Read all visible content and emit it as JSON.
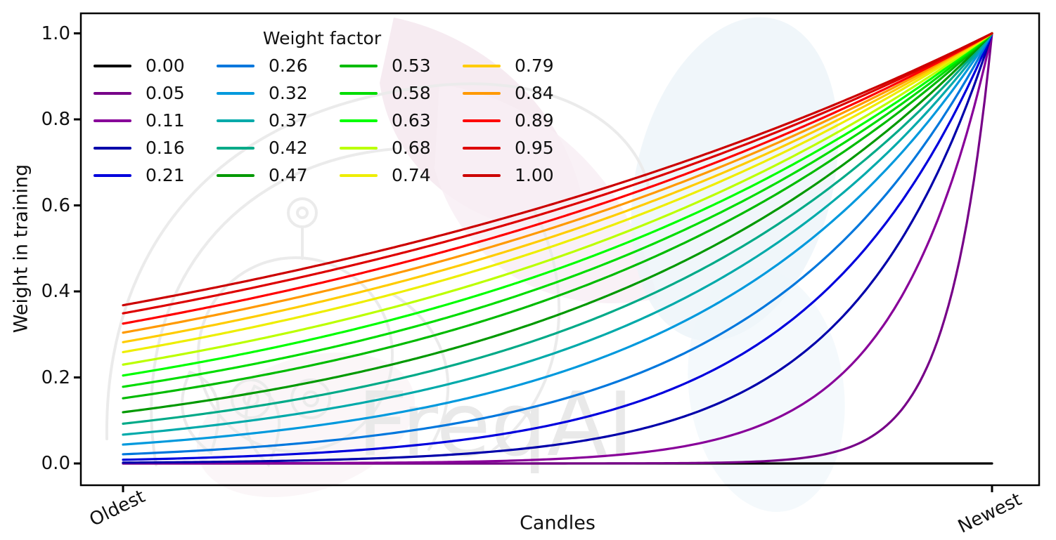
{
  "watermark": {
    "text": "FreqAI"
  },
  "chart_data": {
    "type": "line",
    "title": "",
    "xlabel": "Candles",
    "ylabel": "Weight in training",
    "x_tick_labels": [
      "Oldest",
      "Newest"
    ],
    "y_ticks": [
      0.0,
      0.2,
      0.4,
      0.6,
      0.8,
      1.0
    ],
    "y_tick_labels": [
      "0.0",
      "0.2",
      "0.4",
      "0.6",
      "0.8",
      "1.0"
    ],
    "ylim": [
      -0.05,
      1.05
    ],
    "x_range_normalized": [
      0,
      1
    ],
    "grid": false,
    "legend": {
      "title": "Weight factor",
      "columns": 4,
      "rows": 5,
      "position": "upper left"
    },
    "curve_formula": "weight(x) = exp(-(1 - x) / factor), x from 0 (Oldest) to 1 (Newest); factor 0.00 plots as a constant 0 line",
    "series": [
      {
        "label": "0.00",
        "factor": 0.0,
        "color": "#000000",
        "weight_at_oldest": 0.0,
        "weight_at_newest": 0.0
      },
      {
        "label": "0.05",
        "factor": 0.05,
        "color": "#770088",
        "weight_at_oldest": 0.0,
        "weight_at_newest": 1.0
      },
      {
        "label": "0.11",
        "factor": 0.11,
        "color": "#880099",
        "weight_at_oldest": 0.0001,
        "weight_at_newest": 1.0
      },
      {
        "label": "0.16",
        "factor": 0.16,
        "color": "#0000AA",
        "weight_at_oldest": 0.002,
        "weight_at_newest": 1.0
      },
      {
        "label": "0.21",
        "factor": 0.21,
        "color": "#0000DD",
        "weight_at_oldest": 0.009,
        "weight_at_newest": 1.0
      },
      {
        "label": "0.26",
        "factor": 0.26,
        "color": "#0077DD",
        "weight_at_oldest": 0.021,
        "weight_at_newest": 1.0
      },
      {
        "label": "0.32",
        "factor": 0.32,
        "color": "#0099DD",
        "weight_at_oldest": 0.044,
        "weight_at_newest": 1.0
      },
      {
        "label": "0.37",
        "factor": 0.37,
        "color": "#00AAAA",
        "weight_at_oldest": 0.067,
        "weight_at_newest": 1.0
      },
      {
        "label": "0.42",
        "factor": 0.42,
        "color": "#00AA88",
        "weight_at_oldest": 0.093,
        "weight_at_newest": 1.0
      },
      {
        "label": "0.47",
        "factor": 0.47,
        "color": "#009900",
        "weight_at_oldest": 0.119,
        "weight_at_newest": 1.0
      },
      {
        "label": "0.53",
        "factor": 0.53,
        "color": "#00BB00",
        "weight_at_oldest": 0.152,
        "weight_at_newest": 1.0
      },
      {
        "label": "0.58",
        "factor": 0.58,
        "color": "#00DD00",
        "weight_at_oldest": 0.178,
        "weight_at_newest": 1.0
      },
      {
        "label": "0.63",
        "factor": 0.63,
        "color": "#00FF00",
        "weight_at_oldest": 0.205,
        "weight_at_newest": 1.0
      },
      {
        "label": "0.68",
        "factor": 0.68,
        "color": "#BBFF00",
        "weight_at_oldest": 0.23,
        "weight_at_newest": 1.0
      },
      {
        "label": "0.74",
        "factor": 0.74,
        "color": "#EEEE00",
        "weight_at_oldest": 0.259,
        "weight_at_newest": 1.0
      },
      {
        "label": "0.79",
        "factor": 0.79,
        "color": "#FFCC00",
        "weight_at_oldest": 0.282,
        "weight_at_newest": 1.0
      },
      {
        "label": "0.84",
        "factor": 0.84,
        "color": "#FF9900",
        "weight_at_oldest": 0.304,
        "weight_at_newest": 1.0
      },
      {
        "label": "0.89",
        "factor": 0.89,
        "color": "#FF0000",
        "weight_at_oldest": 0.325,
        "weight_at_newest": 1.0
      },
      {
        "label": "0.95",
        "factor": 0.95,
        "color": "#DD0000",
        "weight_at_oldest": 0.349,
        "weight_at_newest": 1.0
      },
      {
        "label": "1.00",
        "factor": 1.0,
        "color": "#CC0000",
        "weight_at_oldest": 0.368,
        "weight_at_newest": 1.0
      }
    ]
  }
}
